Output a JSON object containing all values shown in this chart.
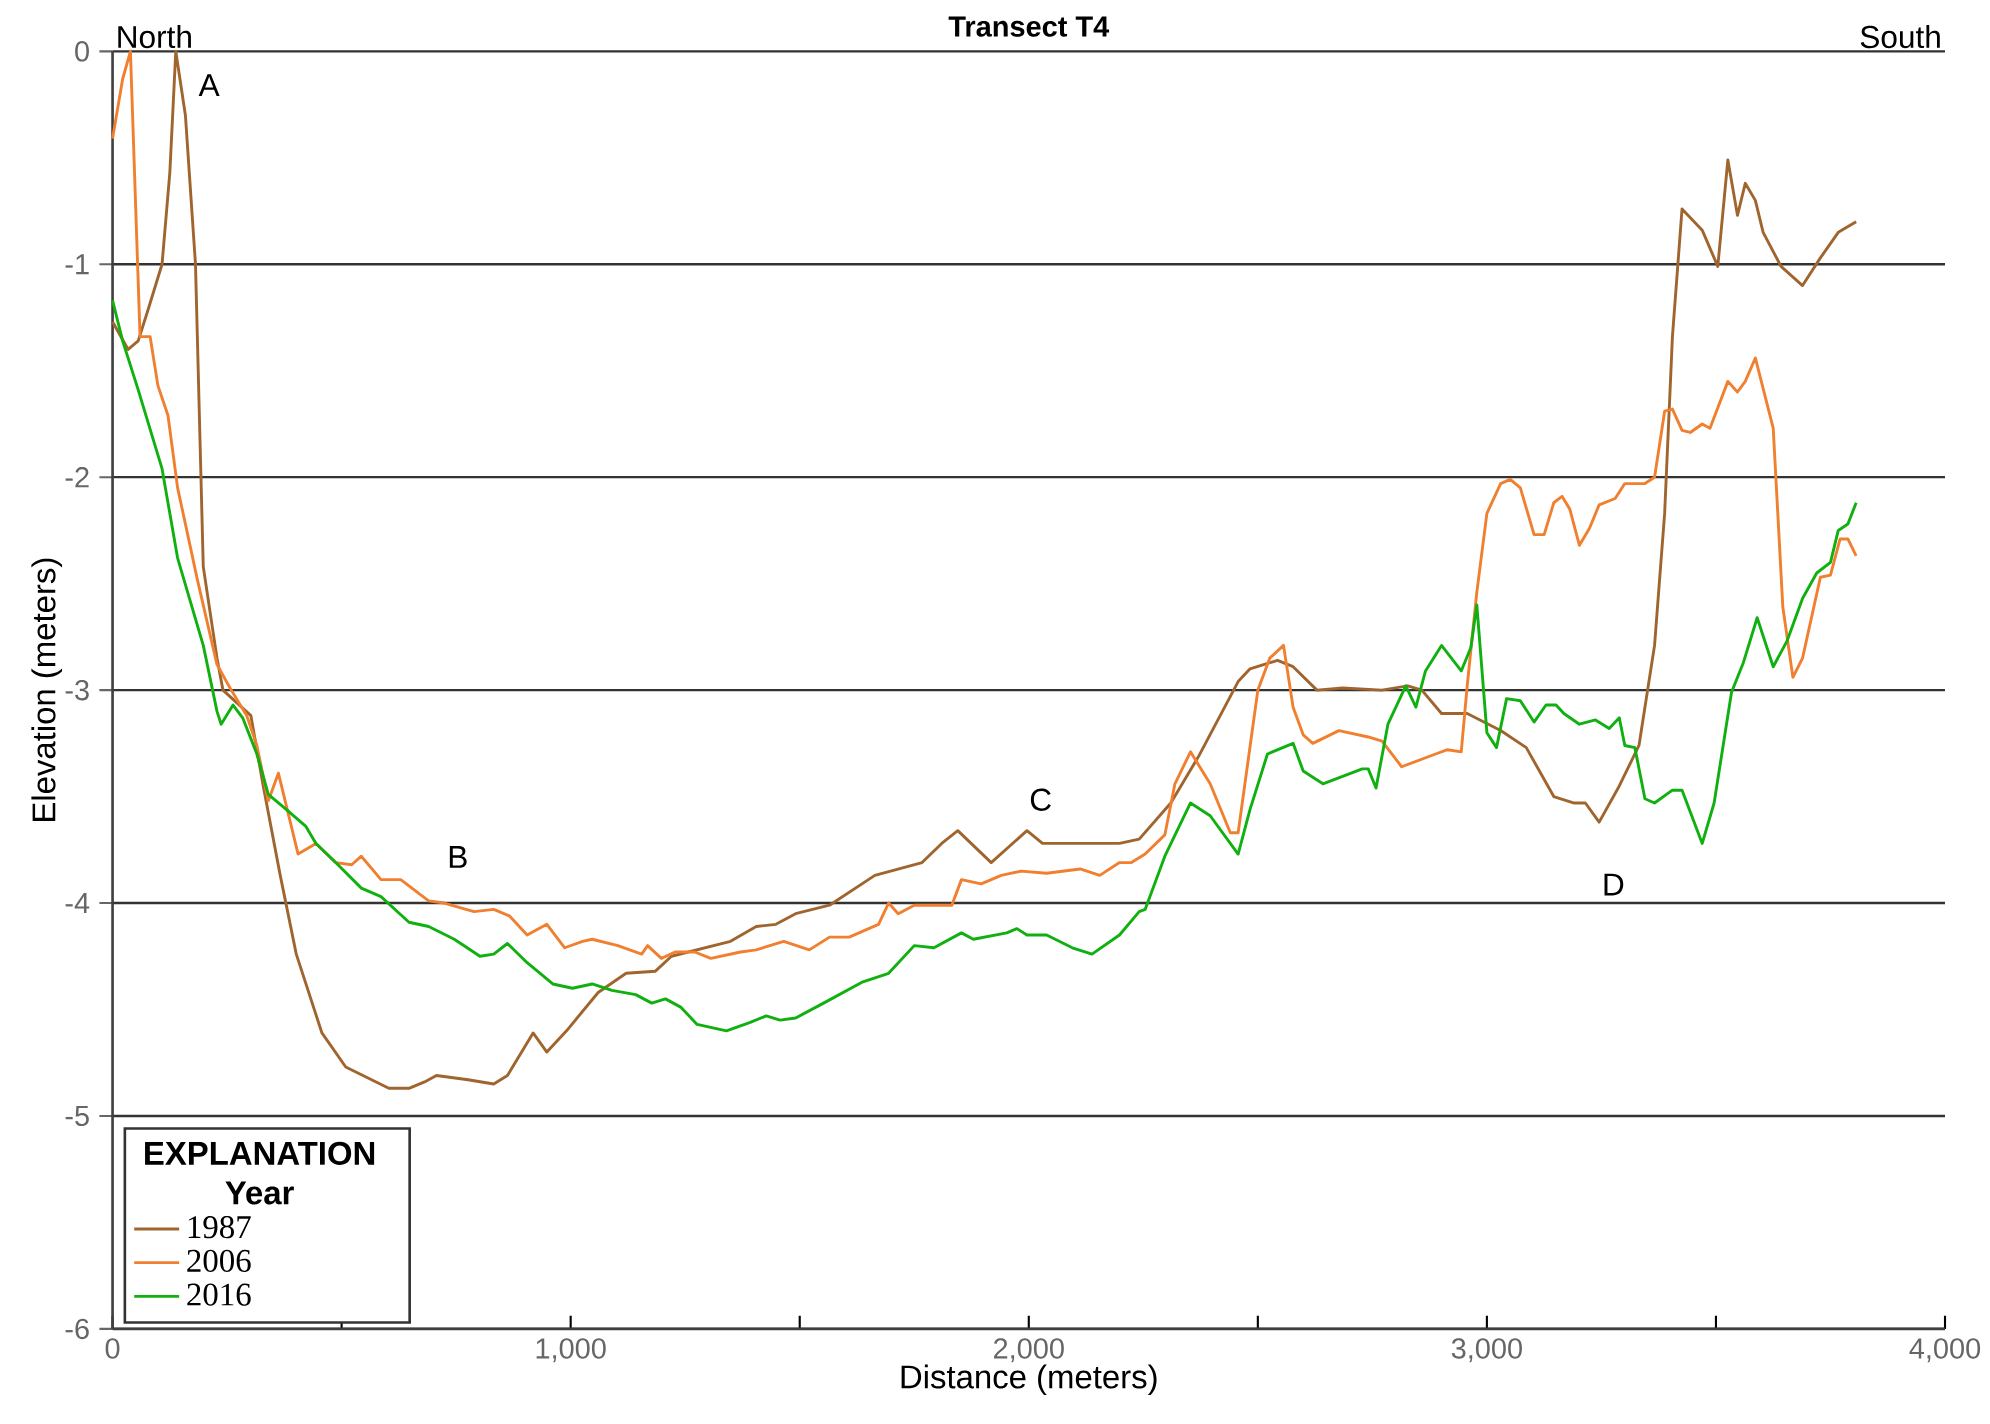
{
  "chart_data": {
    "type": "line",
    "title": "Transect T4",
    "xlabel": "Distance (meters)",
    "ylabel": "Elevation (meters)",
    "legend_title": "EXPLANATION Year",
    "legend": "bottom left",
    "grid": "y",
    "line_style": "solid",
    "marker": "none",
    "xlim": [
      0,
      4000
    ],
    "ylim": [
      -6,
      0
    ],
    "xticks": [
      {
        "value": 0,
        "label": "0"
      },
      {
        "value": 500,
        "label": null
      },
      {
        "value": 1000,
        "label": "1,000"
      },
      {
        "value": 1500,
        "label": null
      },
      {
        "value": 2000,
        "label": "2,000"
      },
      {
        "value": 2500,
        "label": null
      },
      {
        "value": 3000,
        "label": "3,000"
      },
      {
        "value": 3500,
        "label": null
      },
      {
        "value": 4000,
        "label": "4,000"
      }
    ],
    "yticks": [
      -6,
      -5,
      -4,
      -3,
      -2,
      -1,
      0
    ],
    "annotations": [
      "North",
      "South",
      "A",
      "B",
      "C",
      "D"
    ],
    "series": [
      {
        "name": "1987",
        "color": "#a0652e",
        "x": [
          0,
          34,
          56,
          78,
          108,
          125,
          138,
          159,
          181,
          198,
          228,
          241,
          302,
          328,
          366,
          401,
          457,
          509,
          603,
          647,
          681,
          707,
          776,
          832,
          862,
          918,
          948,
          991,
          1060,
          1121,
          1185,
          1220,
          1349,
          1405,
          1448,
          1491,
          1565,
          1664,
          1767,
          1810,
          1845,
          1918,
          1996,
          2030,
          2198,
          2241,
          2310,
          2371,
          2457,
          2483,
          2543,
          2577,
          2629,
          2685,
          2771,
          2827,
          2858,
          2901,
          2957,
          3030,
          3086,
          3146,
          3189,
          3215,
          3245,
          3289,
          3332,
          3366,
          3388,
          3405,
          3426,
          3470,
          3504,
          3526,
          3547,
          3564,
          3586,
          3603,
          3642,
          3689,
          3728,
          3767,
          3806
        ],
        "values": [
          -1.27,
          -1.4,
          -1.36,
          -1.21,
          -1.0,
          -0.57,
          0.0,
          -0.3,
          -1.0,
          -2.42,
          -2.85,
          -3.0,
          -3.12,
          -3.44,
          -3.87,
          -4.24,
          -4.61,
          -4.77,
          -4.87,
          -4.87,
          -4.84,
          -4.81,
          -4.83,
          -4.85,
          -4.81,
          -4.61,
          -4.7,
          -4.6,
          -4.42,
          -4.33,
          -4.32,
          -4.25,
          -4.18,
          -4.11,
          -4.1,
          -4.05,
          -4.01,
          -3.87,
          -3.81,
          -3.72,
          -3.66,
          -3.81,
          -3.66,
          -3.72,
          -3.72,
          -3.7,
          -3.53,
          -3.31,
          -2.96,
          -2.9,
          -2.86,
          -2.89,
          -3.0,
          -2.99,
          -3.0,
          -2.98,
          -3.0,
          -3.11,
          -3.11,
          -3.19,
          -3.27,
          -3.5,
          -3.53,
          -3.53,
          -3.62,
          -3.45,
          -3.26,
          -2.79,
          -2.17,
          -1.34,
          -0.74,
          -0.84,
          -1.01,
          -0.51,
          -0.77,
          -0.62,
          -0.7,
          -0.85,
          -1.01,
          -1.1,
          -0.97,
          -0.85,
          -0.8
        ]
      },
      {
        "name": "2006",
        "color": "#f08030",
        "x": [
          0,
          22,
          39,
          60,
          82,
          99,
          121,
          142,
          185,
          228,
          259,
          293,
          315,
          340,
          362,
          405,
          444,
          487,
          522,
          543,
          586,
          629,
          690,
          724,
          789,
          832,
          866,
          905,
          948,
          987,
          1026,
          1047,
          1103,
          1155,
          1168,
          1198,
          1228,
          1271,
          1306,
          1371,
          1405,
          1465,
          1521,
          1565,
          1608,
          1672,
          1694,
          1715,
          1750,
          1832,
          1853,
          1896,
          1940,
          1983,
          2039,
          2112,
          2155,
          2198,
          2224,
          2254,
          2297,
          2319,
          2353,
          2396,
          2440,
          2457,
          2500,
          2526,
          2556,
          2577,
          2599,
          2620,
          2677,
          2741,
          2771,
          2814,
          2888,
          2914,
          2944,
          2957,
          2978,
          3000,
          3030,
          3051,
          3073,
          3103,
          3125,
          3146,
          3164,
          3181,
          3202,
          3224,
          3245,
          3280,
          3301,
          3345,
          3366,
          3388,
          3405,
          3426,
          3444,
          3470,
          3487,
          3526,
          3547,
          3564,
          3586,
          3625,
          3646,
          3668,
          3689,
          3728,
          3750,
          3771,
          3788,
          3806
        ],
        "values": [
          -0.41,
          -0.13,
          0.0,
          -1.34,
          -1.34,
          -1.57,
          -1.71,
          -2.05,
          -2.48,
          -2.88,
          -3.0,
          -3.12,
          -3.26,
          -3.52,
          -3.39,
          -3.77,
          -3.72,
          -3.81,
          -3.82,
          -3.78,
          -3.89,
          -3.89,
          -3.99,
          -4.0,
          -4.04,
          -4.03,
          -4.06,
          -4.15,
          -4.1,
          -4.21,
          -4.18,
          -4.17,
          -4.2,
          -4.24,
          -4.2,
          -4.26,
          -4.23,
          -4.23,
          -4.26,
          -4.23,
          -4.22,
          -4.18,
          -4.22,
          -4.16,
          -4.16,
          -4.1,
          -4.0,
          -4.05,
          -4.01,
          -4.01,
          -3.89,
          -3.91,
          -3.87,
          -3.85,
          -3.86,
          -3.84,
          -3.87,
          -3.81,
          -3.81,
          -3.77,
          -3.68,
          -3.44,
          -3.29,
          -3.44,
          -3.67,
          -3.67,
          -3.0,
          -2.85,
          -2.79,
          -3.08,
          -3.21,
          -3.25,
          -3.19,
          -3.22,
          -3.24,
          -3.36,
          -3.3,
          -3.28,
          -3.29,
          -2.98,
          -2.54,
          -2.17,
          -2.03,
          -2.01,
          -2.05,
          -2.27,
          -2.27,
          -2.12,
          -2.09,
          -2.15,
          -2.32,
          -2.24,
          -2.13,
          -2.1,
          -2.03,
          -2.03,
          -2.0,
          -1.69,
          -1.68,
          -1.78,
          -1.79,
          -1.75,
          -1.77,
          -1.55,
          -1.6,
          -1.55,
          -1.44,
          -1.77,
          -2.61,
          -2.94,
          -2.85,
          -2.47,
          -2.46,
          -2.29,
          -2.29,
          -2.37
        ]
      },
      {
        "name": "2016",
        "color": "#10b010",
        "x": [
          0,
          22,
          56,
          108,
          142,
          198,
          228,
          237,
          263,
          284,
          315,
          340,
          379,
          422,
          444,
          487,
          543,
          586,
          647,
          690,
          746,
          802,
          832,
          862,
          905,
          961,
          1004,
          1047,
          1090,
          1142,
          1177,
          1207,
          1241,
          1276,
          1340,
          1392,
          1427,
          1457,
          1491,
          1552,
          1638,
          1694,
          1750,
          1793,
          1853,
          1879,
          1952,
          1974,
          1996,
          2039,
          2095,
          2138,
          2198,
          2241,
          2254,
          2297,
          2353,
          2396,
          2457,
          2483,
          2521,
          2577,
          2599,
          2642,
          2728,
          2741,
          2758,
          2784,
          2823,
          2845,
          2866,
          2901,
          2944,
          2965,
          2978,
          3000,
          3021,
          3043,
          3073,
          3103,
          3129,
          3151,
          3168,
          3202,
          3237,
          3267,
          3289,
          3301,
          3323,
          3345,
          3366,
          3405,
          3426,
          3470,
          3496,
          3534,
          3560,
          3590,
          3625,
          3655,
          3689,
          3720,
          3750,
          3767,
          3788,
          3806
        ],
        "values": [
          -1.17,
          -1.36,
          -1.59,
          -1.96,
          -2.38,
          -2.79,
          -3.1,
          -3.16,
          -3.07,
          -3.13,
          -3.3,
          -3.49,
          -3.56,
          -3.64,
          -3.72,
          -3.81,
          -3.93,
          -3.97,
          -4.09,
          -4.11,
          -4.17,
          -4.25,
          -4.24,
          -4.19,
          -4.28,
          -4.38,
          -4.4,
          -4.38,
          -4.41,
          -4.43,
          -4.47,
          -4.45,
          -4.49,
          -4.57,
          -4.6,
          -4.56,
          -4.53,
          -4.55,
          -4.54,
          -4.47,
          -4.37,
          -4.33,
          -4.2,
          -4.21,
          -4.14,
          -4.17,
          -4.14,
          -4.12,
          -4.15,
          -4.15,
          -4.21,
          -4.24,
          -4.15,
          -4.04,
          -4.03,
          -3.78,
          -3.53,
          -3.59,
          -3.77,
          -3.56,
          -3.3,
          -3.25,
          -3.38,
          -3.44,
          -3.37,
          -3.37,
          -3.46,
          -3.16,
          -2.98,
          -3.08,
          -2.91,
          -2.79,
          -2.91,
          -2.8,
          -2.6,
          -3.2,
          -3.27,
          -3.04,
          -3.05,
          -3.15,
          -3.07,
          -3.07,
          -3.11,
          -3.16,
          -3.14,
          -3.18,
          -3.13,
          -3.26,
          -3.27,
          -3.51,
          -3.53,
          -3.47,
          -3.47,
          -3.72,
          -3.53,
          -3.01,
          -2.87,
          -2.66,
          -2.89,
          -2.77,
          -2.57,
          -2.45,
          -2.4,
          -2.25,
          -2.22,
          -2.12
        ]
      }
    ]
  }
}
